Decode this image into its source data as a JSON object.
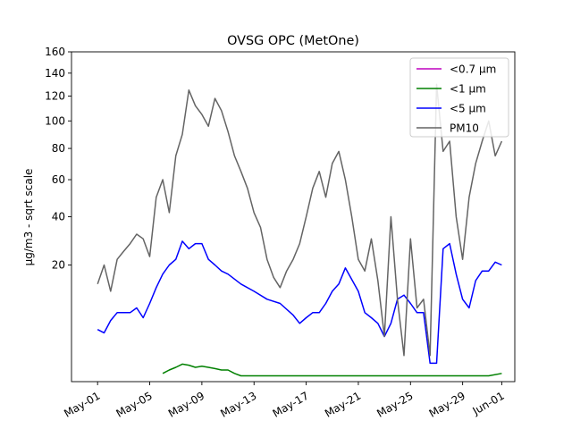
{
  "chart_data": {
    "type": "line",
    "title": "OVSG OPC (MetOne)",
    "xlabel": "",
    "ylabel": "µg/m3 - sqrt scale",
    "y_scale": "sqrt",
    "ylim": [
      0,
      160
    ],
    "xlim": [
      "2024-04-29",
      "2024-06-02"
    ],
    "x_ticks": [
      "2024-05-01",
      "2024-05-05",
      "2024-05-09",
      "2024-05-13",
      "2024-05-17",
      "2024-05-21",
      "2024-05-25",
      "2024-05-29",
      "2024-06-01"
    ],
    "x_tick_labels": [
      "May-01",
      "May-05",
      "May-09",
      "May-13",
      "May-17",
      "May-21",
      "May-25",
      "May-29",
      "Jun-01"
    ],
    "y_ticks": [
      20,
      40,
      60,
      80,
      100,
      120,
      140,
      160
    ],
    "y_tick_labels": [
      "20",
      "40",
      "60",
      "80",
      "100",
      "120",
      "140",
      "160"
    ],
    "grid": false,
    "legend_position": "top-right",
    "series": [
      {
        "name": "<0.7 µm",
        "color": "#bf00bf",
        "x": [
          "2024-05-01",
          "2024-06-01"
        ],
        "y": [
          null,
          null
        ]
      },
      {
        "name": "<1 µm",
        "color": "#008000",
        "x": [
          "2024-05-06",
          "2024-05-06 12:00",
          "2024-05-07",
          "2024-05-07 12:00",
          "2024-05-08",
          "2024-05-08 12:00",
          "2024-05-09",
          "2024-05-09 12:00",
          "2024-05-10",
          "2024-05-10 12:00",
          "2024-05-11",
          "2024-05-11 12:00",
          "2024-05-12",
          "2024-05-18",
          "2024-05-31",
          "2024-06-01"
        ],
        "y": [
          0.1,
          0.2,
          0.3,
          0.45,
          0.4,
          0.3,
          0.35,
          0.3,
          0.25,
          0.2,
          0.2,
          0.1,
          0.05,
          0.05,
          0.05,
          0.1
        ]
      },
      {
        "name": "<5 µm",
        "color": "#0000ff",
        "x": [
          "2024-05-01",
          "2024-05-01 12:00",
          "2024-05-02",
          "2024-05-02 12:00",
          "2024-05-03",
          "2024-05-03 12:00",
          "2024-05-04",
          "2024-05-04 12:00",
          "2024-05-05",
          "2024-05-05 12:00",
          "2024-05-06",
          "2024-05-06 12:00",
          "2024-05-07",
          "2024-05-07 12:00",
          "2024-05-08",
          "2024-05-08 12:00",
          "2024-05-09",
          "2024-05-09 12:00",
          "2024-05-10",
          "2024-05-10 12:00",
          "2024-05-11",
          "2024-05-12",
          "2024-05-13",
          "2024-05-14",
          "2024-05-15",
          "2024-05-16",
          "2024-05-16 12:00",
          "2024-05-17",
          "2024-05-17 12:00",
          "2024-05-18",
          "2024-05-18 12:00",
          "2024-05-19",
          "2024-05-19 12:00",
          "2024-05-20",
          "2024-05-21",
          "2024-05-21 12:00",
          "2024-05-22",
          "2024-05-22 12:00",
          "2024-05-23",
          "2024-05-23 12:00",
          "2024-05-24",
          "2024-05-24 12:00",
          "2024-05-25",
          "2024-05-25 12:00",
          "2024-05-26",
          "2024-05-26 12:00",
          "2024-05-27",
          "2024-05-27 12:00",
          "2024-05-28",
          "2024-05-28 12:00",
          "2024-05-29",
          "2024-05-29 12:00",
          "2024-05-30",
          "2024-05-30 12:00",
          "2024-05-31",
          "2024-05-31 12:00",
          "2024-06-01"
        ],
        "y": [
          4,
          3.5,
          5.5,
          7,
          7,
          7,
          8,
          6,
          9,
          13,
          17,
          20,
          22,
          29,
          26,
          28,
          28,
          22,
          20,
          18,
          17,
          14,
          12,
          10,
          9,
          6.5,
          5,
          6,
          7,
          7,
          9,
          12,
          14,
          19,
          12,
          7,
          6,
          5,
          3,
          5,
          10,
          11,
          9,
          7,
          7,
          0.5,
          0.5,
          26,
          28,
          17,
          10,
          8,
          15,
          18,
          18,
          21,
          20
        ]
      },
      {
        "name": "PM10",
        "color": "#646464",
        "x": [
          "2024-05-01",
          "2024-05-01 12:00",
          "2024-05-02",
          "2024-05-02 12:00",
          "2024-05-03",
          "2024-05-03 12:00",
          "2024-05-04",
          "2024-05-04 12:00",
          "2024-05-05",
          "2024-05-05 12:00",
          "2024-05-06",
          "2024-05-06 12:00",
          "2024-05-07",
          "2024-05-07 12:00",
          "2024-05-08",
          "2024-05-08 12:00",
          "2024-05-09",
          "2024-05-09 12:00",
          "2024-05-10",
          "2024-05-10 12:00",
          "2024-05-11",
          "2024-05-11 12:00",
          "2024-05-12",
          "2024-05-12 12:00",
          "2024-05-13",
          "2024-05-13 12:00",
          "2024-05-14",
          "2024-05-14 12:00",
          "2024-05-15",
          "2024-05-15 12:00",
          "2024-05-16",
          "2024-05-16 12:00",
          "2024-05-17",
          "2024-05-17 12:00",
          "2024-05-18",
          "2024-05-18 12:00",
          "2024-05-19",
          "2024-05-19 12:00",
          "2024-05-20",
          "2024-05-20 12:00",
          "2024-05-21",
          "2024-05-21 12:00",
          "2024-05-22",
          "2024-05-22 12:00",
          "2024-05-23",
          "2024-05-23 12:00",
          "2024-05-24",
          "2024-05-24 12:00",
          "2024-05-25",
          "2024-05-25 12:00",
          "2024-05-26",
          "2024-05-26 12:00",
          "2024-05-27",
          "2024-05-27 12:00",
          "2024-05-28",
          "2024-05-28 12:00",
          "2024-05-29",
          "2024-05-29 12:00",
          "2024-05-30",
          "2024-05-30 12:00",
          "2024-05-31",
          "2024-05-31 12:00",
          "2024-06-01"
        ],
        "y": [
          14,
          20,
          12,
          22,
          25,
          28,
          32,
          30,
          23,
          50,
          60,
          42,
          75,
          90,
          125,
          112,
          105,
          96,
          118,
          108,
          92,
          75,
          65,
          55,
          42,
          35,
          22,
          16,
          13,
          18,
          22,
          28,
          40,
          55,
          65,
          50,
          70,
          78,
          60,
          40,
          22,
          18,
          30,
          15,
          3,
          40,
          10,
          1,
          30,
          8,
          10,
          1,
          130,
          78,
          85,
          40,
          22,
          50,
          70,
          85,
          100,
          75,
          85
        ]
      }
    ]
  }
}
